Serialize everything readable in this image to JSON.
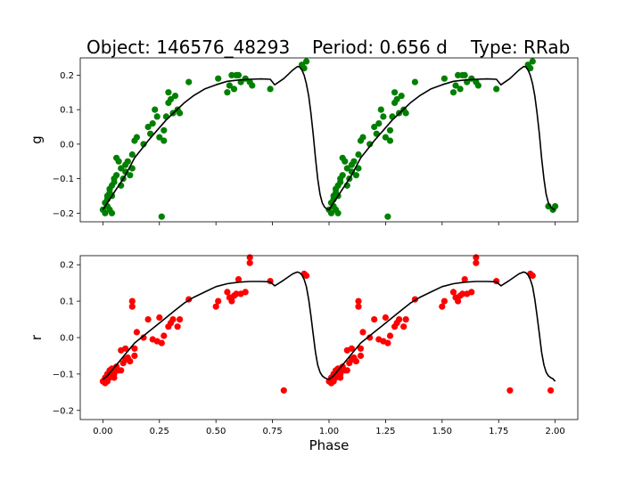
{
  "figure": {
    "title_parts": [
      "Object: 146576_48293",
      "Period: 0.656 d",
      "Type: RRab"
    ]
  },
  "chart_data": [
    {
      "type": "scatter",
      "band": "g",
      "ylabel": "g",
      "xlabel": "",
      "xlim": [
        -0.1,
        2.1
      ],
      "ylim": [
        -0.225,
        0.25
      ],
      "xticks": [
        0.0,
        0.25,
        0.5,
        0.75,
        1.0,
        1.25,
        1.5,
        1.75,
        2.0
      ],
      "xtick_labels_visible": false,
      "yticks": [
        -0.2,
        -0.1,
        0.0,
        0.1,
        0.2
      ],
      "ytick_labels": [
        "−0.2",
        "−0.1",
        "0.0",
        "0.1",
        "0.2"
      ],
      "colors": {
        "points": "#008000",
        "model": "#000000"
      },
      "points_x": [
        0.0,
        0.01,
        0.01,
        0.02,
        0.02,
        0.02,
        0.03,
        0.03,
        0.03,
        0.04,
        0.04,
        0.04,
        0.05,
        0.05,
        0.06,
        0.06,
        0.07,
        0.08,
        0.08,
        0.09,
        0.1,
        0.1,
        0.11,
        0.12,
        0.13,
        0.13,
        0.14,
        0.15,
        0.18,
        0.2,
        0.21,
        0.22,
        0.23,
        0.24,
        0.25,
        0.26,
        0.27,
        0.27,
        0.28,
        0.29,
        0.29,
        0.3,
        0.31,
        0.32,
        0.33,
        0.34,
        0.38,
        0.51,
        0.55,
        0.56,
        0.57,
        0.58,
        0.59,
        0.6,
        0.61,
        0.63,
        0.65,
        0.66,
        0.74,
        0.88,
        0.89,
        0.9,
        1.0,
        1.01,
        1.01,
        1.02,
        1.02,
        1.02,
        1.03,
        1.03,
        1.03,
        1.04,
        1.04,
        1.04,
        1.05,
        1.05,
        1.06,
        1.06,
        1.07,
        1.08,
        1.08,
        1.09,
        1.1,
        1.1,
        1.11,
        1.12,
        1.13,
        1.13,
        1.14,
        1.15,
        1.18,
        1.2,
        1.21,
        1.22,
        1.23,
        1.24,
        1.25,
        1.26,
        1.27,
        1.27,
        1.28,
        1.29,
        1.29,
        1.3,
        1.31,
        1.32,
        1.33,
        1.34,
        1.38,
        1.51,
        1.55,
        1.56,
        1.57,
        1.58,
        1.59,
        1.6,
        1.61,
        1.63,
        1.65,
        1.66,
        1.74,
        1.88,
        1.89,
        1.9,
        1.97,
        1.99,
        2.0
      ],
      "points_y": [
        -0.19,
        -0.2,
        -0.17,
        -0.18,
        -0.16,
        -0.15,
        -0.19,
        -0.14,
        -0.13,
        -0.2,
        -0.15,
        -0.12,
        -0.11,
        -0.1,
        -0.09,
        -0.04,
        -0.05,
        -0.12,
        -0.07,
        -0.1,
        -0.08,
        -0.06,
        -0.05,
        -0.09,
        -0.07,
        -0.03,
        0.01,
        0.02,
        0.0,
        0.05,
        0.03,
        0.06,
        0.1,
        0.08,
        0.02,
        -0.21,
        0.01,
        0.04,
        0.08,
        0.12,
        0.15,
        0.13,
        0.09,
        0.14,
        0.1,
        0.09,
        0.18,
        0.19,
        0.15,
        0.17,
        0.2,
        0.16,
        0.2,
        0.2,
        0.18,
        0.19,
        0.18,
        0.17,
        0.16,
        0.23,
        0.22,
        0.24,
        -0.19,
        -0.2,
        -0.17,
        -0.18,
        -0.16,
        -0.15,
        -0.19,
        -0.14,
        -0.13,
        -0.2,
        -0.15,
        -0.12,
        -0.11,
        -0.1,
        -0.09,
        -0.04,
        -0.05,
        -0.12,
        -0.07,
        -0.1,
        -0.08,
        -0.06,
        -0.05,
        -0.09,
        -0.07,
        -0.03,
        0.01,
        0.02,
        0.0,
        0.05,
        0.03,
        0.06,
        0.1,
        0.08,
        0.02,
        -0.21,
        0.01,
        0.04,
        0.08,
        0.12,
        0.15,
        0.13,
        0.09,
        0.14,
        0.1,
        0.09,
        0.18,
        0.19,
        0.15,
        0.17,
        0.2,
        0.16,
        0.2,
        0.2,
        0.18,
        0.19,
        0.18,
        0.17,
        0.16,
        0.23,
        0.22,
        0.24,
        -0.18,
        -0.19,
        -0.18
      ],
      "model_x": [
        0.0,
        0.02,
        0.04,
        0.06,
        0.08,
        0.1,
        0.12,
        0.14,
        0.17,
        0.2,
        0.24,
        0.28,
        0.32,
        0.36,
        0.4,
        0.45,
        0.5,
        0.55,
        0.6,
        0.65,
        0.7,
        0.74,
        0.76,
        0.8,
        0.84,
        0.86,
        0.87,
        0.88,
        0.89,
        0.9,
        0.91,
        0.92,
        0.93,
        0.94,
        0.95,
        0.96,
        0.97,
        0.98,
        0.99,
        1.0,
        1.02,
        1.04,
        1.06,
        1.08,
        1.1,
        1.12,
        1.14,
        1.17,
        1.2,
        1.24,
        1.28,
        1.32,
        1.36,
        1.4,
        1.45,
        1.5,
        1.55,
        1.6,
        1.65,
        1.7,
        1.74,
        1.76,
        1.8,
        1.84,
        1.86,
        1.87,
        1.88,
        1.89,
        1.9,
        1.91,
        1.92,
        1.93,
        1.94,
        1.95,
        1.96,
        1.97,
        1.98,
        1.99,
        2.0
      ],
      "model_y": [
        -0.19,
        -0.17,
        -0.15,
        -0.13,
        -0.11,
        -0.09,
        -0.065,
        -0.04,
        -0.015,
        0.01,
        0.04,
        0.07,
        0.095,
        0.12,
        0.14,
        0.16,
        0.172,
        0.182,
        0.186,
        0.188,
        0.189,
        0.188,
        0.172,
        0.19,
        0.215,
        0.225,
        0.224,
        0.215,
        0.2,
        0.175,
        0.14,
        0.09,
        0.03,
        -0.04,
        -0.1,
        -0.145,
        -0.17,
        -0.182,
        -0.188,
        -0.19,
        -0.17,
        -0.15,
        -0.13,
        -0.11,
        -0.09,
        -0.065,
        -0.04,
        -0.015,
        0.01,
        0.04,
        0.07,
        0.095,
        0.12,
        0.14,
        0.16,
        0.172,
        0.182,
        0.186,
        0.188,
        0.189,
        0.188,
        0.172,
        0.19,
        0.215,
        0.225,
        0.224,
        0.215,
        0.2,
        0.175,
        0.14,
        0.09,
        0.03,
        -0.04,
        -0.1,
        -0.145,
        -0.17,
        -0.182,
        -0.188,
        -0.19
      ]
    },
    {
      "type": "scatter",
      "band": "r",
      "ylabel": "r",
      "xlabel": "Phase",
      "xlim": [
        -0.1,
        2.1
      ],
      "ylim": [
        -0.225,
        0.225
      ],
      "xticks": [
        0.0,
        0.25,
        0.5,
        0.75,
        1.0,
        1.25,
        1.5,
        1.75,
        2.0
      ],
      "xtick_labels": [
        "0.00",
        "0.25",
        "0.50",
        "0.75",
        "1.00",
        "1.25",
        "1.50",
        "1.75",
        "2.00"
      ],
      "xtick_labels_visible": true,
      "yticks": [
        -0.2,
        -0.1,
        0.0,
        0.1,
        0.2
      ],
      "ytick_labels": [
        "−0.2",
        "−0.1",
        "0.0",
        "0.1",
        "0.2"
      ],
      "colors": {
        "points": "#ff0000",
        "model": "#000000"
      },
      "points_x": [
        0.0,
        0.01,
        0.01,
        0.02,
        0.02,
        0.03,
        0.03,
        0.04,
        0.04,
        0.05,
        0.05,
        0.06,
        0.06,
        0.07,
        0.08,
        0.08,
        0.09,
        0.1,
        0.1,
        0.11,
        0.12,
        0.13,
        0.13,
        0.14,
        0.14,
        0.15,
        0.18,
        0.2,
        0.22,
        0.24,
        0.25,
        0.26,
        0.27,
        0.29,
        0.3,
        0.31,
        0.33,
        0.34,
        0.38,
        0.5,
        0.51,
        0.55,
        0.56,
        0.57,
        0.58,
        0.59,
        0.6,
        0.61,
        0.63,
        0.65,
        0.65,
        0.74,
        0.8,
        0.89,
        0.9,
        1.0,
        1.01,
        1.01,
        1.02,
        1.02,
        1.03,
        1.03,
        1.04,
        1.04,
        1.05,
        1.05,
        1.06,
        1.06,
        1.07,
        1.08,
        1.08,
        1.09,
        1.1,
        1.1,
        1.11,
        1.12,
        1.13,
        1.13,
        1.14,
        1.14,
        1.15,
        1.18,
        1.2,
        1.22,
        1.24,
        1.25,
        1.26,
        1.27,
        1.29,
        1.3,
        1.31,
        1.33,
        1.34,
        1.38,
        1.5,
        1.51,
        1.55,
        1.56,
        1.57,
        1.58,
        1.59,
        1.6,
        1.61,
        1.63,
        1.65,
        1.65,
        1.74,
        1.8,
        1.89,
        1.9,
        1.98
      ],
      "points_y": [
        -0.12,
        -0.11,
        -0.125,
        -0.1,
        -0.12,
        -0.09,
        -0.11,
        -0.1,
        -0.085,
        -0.1,
        -0.11,
        -0.09,
        -0.08,
        -0.09,
        -0.035,
        -0.09,
        -0.07,
        -0.06,
        -0.03,
        -0.055,
        -0.065,
        0.1,
        0.085,
        -0.03,
        -0.05,
        0.015,
        0.0,
        0.05,
        -0.005,
        -0.01,
        0.055,
        -0.015,
        0.005,
        0.03,
        0.04,
        0.05,
        0.03,
        0.05,
        0.105,
        0.085,
        0.1,
        0.125,
        0.11,
        0.1,
        0.115,
        0.12,
        0.16,
        0.12,
        0.125,
        0.205,
        0.22,
        0.155,
        -0.145,
        0.175,
        0.17,
        -0.12,
        -0.11,
        -0.125,
        -0.1,
        -0.12,
        -0.09,
        -0.11,
        -0.1,
        -0.085,
        -0.1,
        -0.11,
        -0.09,
        -0.08,
        -0.09,
        -0.035,
        -0.09,
        -0.07,
        -0.06,
        -0.03,
        -0.055,
        -0.065,
        0.1,
        0.085,
        -0.03,
        -0.05,
        0.015,
        0.0,
        0.05,
        -0.005,
        -0.01,
        0.055,
        -0.015,
        0.005,
        0.03,
        0.04,
        0.05,
        0.03,
        0.05,
        0.105,
        0.085,
        0.1,
        0.125,
        0.11,
        0.1,
        0.115,
        0.12,
        0.16,
        0.12,
        0.125,
        0.205,
        0.22,
        0.155,
        -0.145,
        0.175,
        0.17,
        -0.145
      ],
      "model_x": [
        0.0,
        0.02,
        0.04,
        0.06,
        0.08,
        0.1,
        0.12,
        0.14,
        0.17,
        0.2,
        0.24,
        0.28,
        0.32,
        0.36,
        0.4,
        0.45,
        0.5,
        0.55,
        0.6,
        0.65,
        0.7,
        0.74,
        0.76,
        0.8,
        0.84,
        0.86,
        0.87,
        0.88,
        0.89,
        0.9,
        0.91,
        0.92,
        0.93,
        0.94,
        0.95,
        0.96,
        0.97,
        0.98,
        0.99,
        1.0,
        1.02,
        1.04,
        1.06,
        1.08,
        1.1,
        1.12,
        1.14,
        1.17,
        1.2,
        1.24,
        1.28,
        1.32,
        1.36,
        1.4,
        1.45,
        1.5,
        1.55,
        1.6,
        1.65,
        1.7,
        1.74,
        1.76,
        1.8,
        1.84,
        1.86,
        1.87,
        1.88,
        1.89,
        1.9,
        1.91,
        1.92,
        1.93,
        1.94,
        1.95,
        1.96,
        1.97,
        1.98,
        1.99,
        2.0
      ],
      "model_y": [
        -0.115,
        -0.105,
        -0.09,
        -0.075,
        -0.06,
        -0.045,
        -0.03,
        -0.015,
        0.0,
        0.015,
        0.035,
        0.055,
        0.075,
        0.095,
        0.11,
        0.125,
        0.14,
        0.148,
        0.152,
        0.154,
        0.154,
        0.153,
        0.142,
        0.158,
        0.175,
        0.18,
        0.178,
        0.172,
        0.16,
        0.14,
        0.105,
        0.06,
        0.01,
        -0.04,
        -0.075,
        -0.095,
        -0.105,
        -0.11,
        -0.113,
        -0.115,
        -0.105,
        -0.09,
        -0.075,
        -0.06,
        -0.045,
        -0.03,
        -0.015,
        0.0,
        0.015,
        0.035,
        0.055,
        0.075,
        0.095,
        0.11,
        0.125,
        0.14,
        0.148,
        0.152,
        0.154,
        0.154,
        0.153,
        0.142,
        0.158,
        0.175,
        0.18,
        0.178,
        0.172,
        0.16,
        0.14,
        0.105,
        0.06,
        0.01,
        -0.04,
        -0.075,
        -0.095,
        -0.105,
        -0.11,
        -0.113,
        -0.12
      ]
    }
  ]
}
